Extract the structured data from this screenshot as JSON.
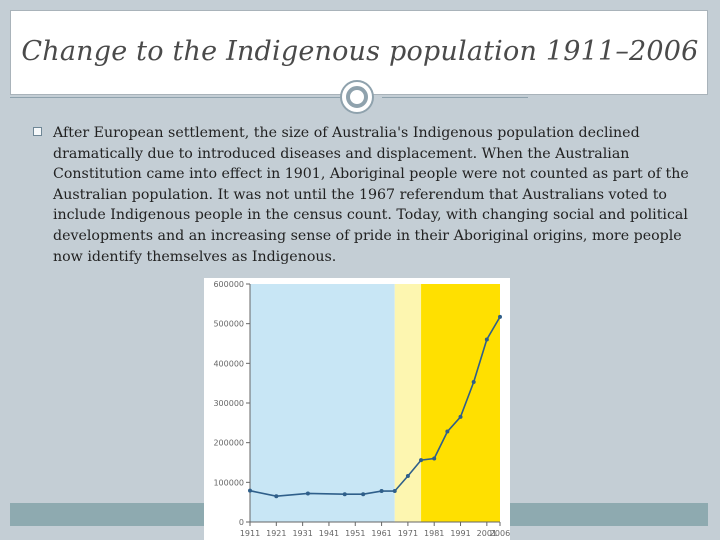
{
  "slide": {
    "title": "Change to the Indigenous population 1911–2006",
    "bullet_text": "After European settlement, the size of Australia's Indigenous population declined dramatically due to introduced diseases and displacement. When the Australian Constitution came into effect in 1901, Aboriginal people were not counted as part of the Australian population. It was not until the 1967 referendum that Australians voted to include Indigenous people in the census count.  Today, with changing social and political developments and an increasing sense of pride in their Aboriginal origins, more people now identify themselves as Indigenous."
  },
  "colors": {
    "background": "#c4ced5",
    "footer": "#8eaab0",
    "band_blue": "#c8e6f5",
    "band_pale_yellow": "#fdf6b0",
    "band_yellow": "#ffe000",
    "line": "#2f5f8a"
  },
  "chart_data": {
    "type": "line",
    "x": [
      1911,
      1921,
      1933,
      1947,
      1954,
      1961,
      1966,
      1971,
      1976,
      1981,
      1986,
      1991,
      1996,
      2001,
      2006
    ],
    "series": [
      {
        "values": [
          79000,
          65000,
          72000,
          70000,
          70000,
          78000,
          78000,
          116000,
          156000,
          160000,
          228000,
          265000,
          353000,
          460000,
          517000
        ]
      }
    ],
    "xticks": [
      "1911",
      "1921",
      "1931",
      "1941",
      "1951",
      "1961",
      "1971",
      "1981",
      "1991",
      "2001",
      "2006"
    ],
    "yticks": [
      "0",
      "100000",
      "200000",
      "300000",
      "400000",
      "500000",
      "600000"
    ],
    "ylim": [
      0,
      600000
    ],
    "xlim": [
      1911,
      2006
    ],
    "bands": [
      {
        "from": 1911,
        "to": 1966,
        "color": "#c8e6f5"
      },
      {
        "from": 1966,
        "to": 1976,
        "color": "#fdf6b0"
      },
      {
        "from": 1976,
        "to": 2006,
        "color": "#ffe000"
      }
    ],
    "grid": false,
    "legend": "none"
  }
}
